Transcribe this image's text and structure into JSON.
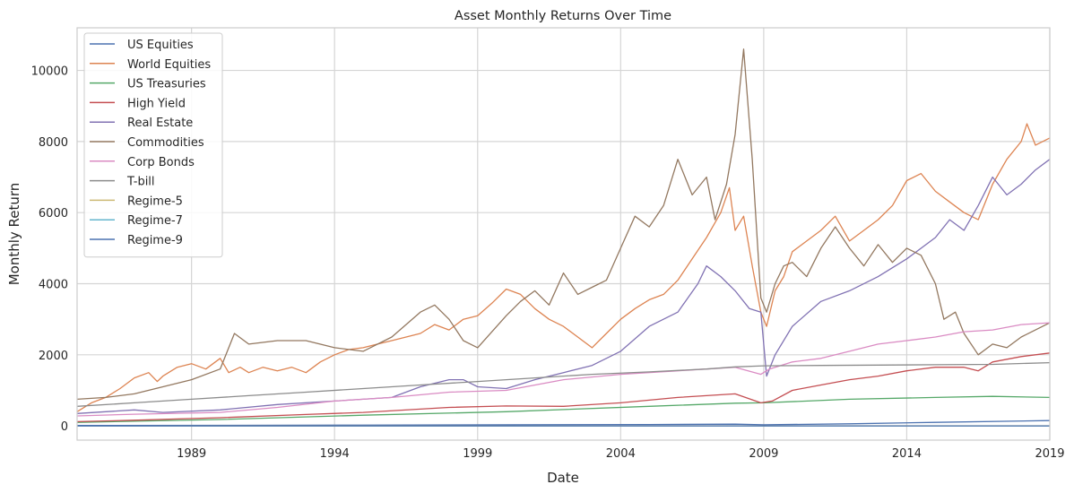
{
  "chart_data": {
    "type": "line",
    "title": "Asset Monthly Returns Over Time",
    "xlabel": "Date",
    "ylabel": "Monthly Return",
    "xlim": [
      1985.0,
      2019.0
    ],
    "ylim": [
      -400,
      11200
    ],
    "x_ticks": [
      1989,
      1994,
      1999,
      2004,
      2009,
      2014,
      2019
    ],
    "x_tick_labels": [
      "1989",
      "1994",
      "1999",
      "2004",
      "2009",
      "2014",
      "2019"
    ],
    "y_ticks": [
      0,
      2000,
      4000,
      6000,
      8000,
      10000
    ],
    "y_tick_labels": [
      "0",
      "2000",
      "4000",
      "6000",
      "8000",
      "10000"
    ],
    "grid": true,
    "legend_position": "top-left",
    "series": [
      {
        "name": "US Equities",
        "color": "#4c72b0",
        "x": [
          1985,
          1990,
          1995,
          2000,
          2005,
          2008,
          2009,
          2012,
          2015,
          2019
        ],
        "y": [
          10,
          15,
          20,
          30,
          40,
          50,
          30,
          60,
          100,
          150
        ]
      },
      {
        "name": "World Equities",
        "color": "#dd8452",
        "x": [
          1985,
          1985.5,
          1986,
          1986.5,
          1987,
          1987.5,
          1987.8,
          1988,
          1988.5,
          1989,
          1989.5,
          1990,
          1990.3,
          1990.7,
          1991,
          1991.5,
          1992,
          1992.5,
          1993,
          1993.5,
          1994,
          1994.5,
          1995,
          1995.5,
          1996,
          1996.5,
          1997,
          1997.5,
          1998,
          1998.5,
          1999,
          1999.5,
          2000,
          2000.5,
          2001,
          2001.5,
          2002,
          2002.5,
          2003,
          2003.5,
          2004,
          2004.5,
          2005,
          2005.5,
          2006,
          2006.5,
          2007,
          2007.5,
          2007.8,
          2008,
          2008.3,
          2008.6,
          2008.9,
          2009.1,
          2009.4,
          2009.7,
          2010,
          2010.5,
          2011,
          2011.5,
          2012,
          2012.5,
          2013,
          2013.5,
          2014,
          2014.5,
          2015,
          2015.5,
          2016,
          2016.5,
          2017,
          2017.5,
          2018,
          2018.2,
          2018.5,
          2019
        ],
        "y": [
          400,
          650,
          800,
          1050,
          1350,
          1500,
          1250,
          1400,
          1650,
          1750,
          1600,
          1900,
          1500,
          1650,
          1500,
          1650,
          1550,
          1650,
          1500,
          1800,
          2000,
          2150,
          2200,
          2300,
          2400,
          2500,
          2600,
          2850,
          2700,
          3000,
          3100,
          3450,
          3850,
          3700,
          3300,
          3000,
          2800,
          2500,
          2200,
          2600,
          3000,
          3300,
          3550,
          3700,
          4100,
          4700,
          5300,
          6000,
          6700,
          5500,
          5900,
          4500,
          3200,
          2800,
          3800,
          4200,
          4900,
          5200,
          5500,
          5900,
          5200,
          5500,
          5800,
          6200,
          6900,
          7100,
          6600,
          6300,
          6000,
          5800,
          6800,
          7500,
          8000,
          8500,
          7900,
          8100
        ]
      },
      {
        "name": "US Treasuries",
        "color": "#55a868",
        "x": [
          1985,
          1990,
          1995,
          2000,
          2005,
          2008,
          2009,
          2012,
          2015,
          2017,
          2019
        ],
        "y": [
          100,
          180,
          300,
          400,
          550,
          640,
          650,
          750,
          800,
          830,
          800
        ]
      },
      {
        "name": "High Yield",
        "color": "#c44e52",
        "x": [
          1985,
          1987,
          1990,
          1993,
          1995,
          1998,
          2000,
          2002,
          2004,
          2006,
          2008,
          2008.9,
          2009.3,
          2010,
          2011,
          2012,
          2013,
          2014,
          2015,
          2016,
          2016.5,
          2017,
          2018,
          2019
        ],
        "y": [
          120,
          160,
          230,
          320,
          380,
          520,
          560,
          550,
          650,
          800,
          900,
          650,
          700,
          1000,
          1150,
          1300,
          1400,
          1550,
          1650,
          1650,
          1550,
          1800,
          1950,
          2050
        ]
      },
      {
        "name": "Real Estate",
        "color": "#8172b3",
        "x": [
          1985,
          1987,
          1988,
          1990,
          1992,
          1994,
          1996,
          1997,
          1998,
          1998.5,
          1999,
          2000,
          2001,
          2002,
          2003,
          2004,
          2005,
          2006,
          2006.7,
          2007,
          2007.5,
          2008,
          2008.5,
          2008.9,
          2009.1,
          2009.4,
          2010,
          2011,
          2012,
          2013,
          2014,
          2015,
          2015.5,
          2016,
          2016.5,
          2017,
          2017.5,
          2018,
          2018.5,
          2019
        ],
        "y": [
          350,
          450,
          380,
          450,
          600,
          700,
          800,
          1100,
          1300,
          1300,
          1100,
          1050,
          1300,
          1500,
          1700,
          2100,
          2800,
          3200,
          4000,
          4500,
          4200,
          3800,
          3300,
          3200,
          1400,
          2000,
          2800,
          3500,
          3800,
          4200,
          4700,
          5300,
          5800,
          5500,
          6200,
          7000,
          6500,
          6800,
          7200,
          7500
        ]
      },
      {
        "name": "Commodities",
        "color": "#937860",
        "x": [
          1985,
          1986,
          1987,
          1988,
          1989,
          1990,
          1990.5,
          1991,
          1992,
          1993,
          1994,
          1995,
          1996,
          1997,
          1997.5,
          1998,
          1998.5,
          1999,
          2000,
          2000.5,
          2001,
          2001.5,
          2002,
          2002.5,
          2003,
          2003.5,
          2004,
          2004.5,
          2005,
          2005.5,
          2006,
          2006.5,
          2007,
          2007.3,
          2007.7,
          2008,
          2008.3,
          2008.6,
          2008.9,
          2009.1,
          2009.4,
          2009.7,
          2010,
          2010.5,
          2011,
          2011.5,
          2012,
          2012.5,
          2013,
          2013.5,
          2014,
          2014.5,
          2015,
          2015.3,
          2015.7,
          2016,
          2016.5,
          2017,
          2017.5,
          2018,
          2018.5,
          2019
        ],
        "y": [
          750,
          800,
          900,
          1100,
          1300,
          1600,
          2600,
          2300,
          2400,
          2400,
          2200,
          2100,
          2500,
          3200,
          3400,
          3000,
          2400,
          2200,
          3100,
          3500,
          3800,
          3400,
          4300,
          3700,
          3900,
          4100,
          5000,
          5900,
          5600,
          6200,
          7500,
          6500,
          7000,
          5800,
          6800,
          8200,
          10600,
          7500,
          3600,
          3200,
          4000,
          4500,
          4600,
          4200,
          5000,
          5600,
          5000,
          4500,
          5100,
          4600,
          5000,
          4800,
          4000,
          3000,
          3200,
          2600,
          2000,
          2300,
          2200,
          2500,
          2700,
          2900
        ]
      },
      {
        "name": "Corp Bonds",
        "color": "#da8bc3",
        "x": [
          1985,
          1987,
          1990,
          1992,
          1994,
          1996,
          1998,
          2000,
          2002,
          2004,
          2006,
          2008,
          2008.9,
          2009.2,
          2010,
          2011,
          2012,
          2013,
          2014,
          2015,
          2016,
          2017,
          2018,
          2019
        ],
        "y": [
          280,
          330,
          380,
          520,
          700,
          800,
          950,
          1000,
          1300,
          1450,
          1550,
          1650,
          1450,
          1600,
          1800,
          1900,
          2100,
          2300,
          2400,
          2500,
          2650,
          2700,
          2850,
          2900
        ]
      },
      {
        "name": "T-bill",
        "color": "#8c8c8c",
        "x": [
          1985,
          1987,
          1989,
          1991,
          1993,
          1995,
          1997,
          1999,
          2001,
          2003,
          2005,
          2007,
          2008,
          2009,
          2011,
          2013,
          2015,
          2017,
          2019
        ],
        "y": [
          550,
          650,
          750,
          850,
          950,
          1050,
          1150,
          1250,
          1350,
          1450,
          1520,
          1600,
          1660,
          1690,
          1700,
          1710,
          1720,
          1730,
          1780
        ]
      },
      {
        "name": "Regime-5",
        "color": "#ccb974",
        "x": [
          1985,
          2019
        ],
        "y": [
          2,
          3
        ]
      },
      {
        "name": "Regime-7",
        "color": "#64b5cd",
        "x": [
          1985,
          2019
        ],
        "y": [
          1,
          2
        ]
      },
      {
        "name": "Regime-9",
        "color": "#4c72b0",
        "x": [
          1985,
          2019
        ],
        "y": [
          0,
          1
        ]
      }
    ]
  }
}
